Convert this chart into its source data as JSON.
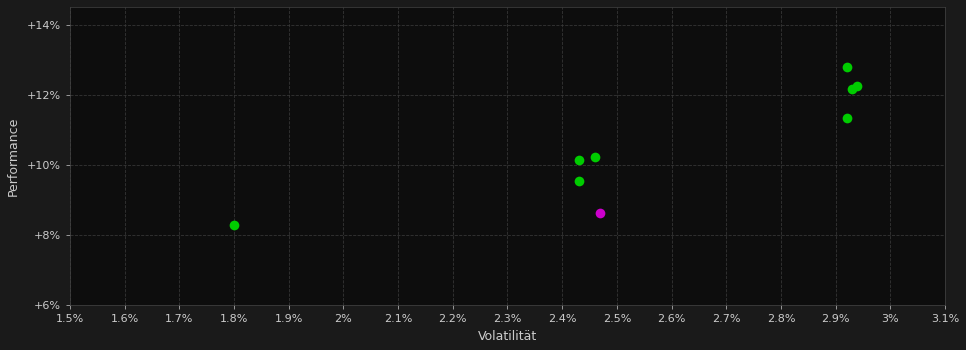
{
  "background_color": "#1a1a1a",
  "plot_bg_color": "#0d0d0d",
  "grid_color": "#3a3a3a",
  "grid_linestyle": "--",
  "xlabel": "Volatilität",
  "ylabel": "Performance",
  "xlabel_color": "#cccccc",
  "ylabel_color": "#cccccc",
  "tick_color": "#cccccc",
  "xlim": [
    0.015,
    0.031
  ],
  "ylim": [
    0.06,
    0.145
  ],
  "xticks": [
    0.015,
    0.016,
    0.017,
    0.018,
    0.019,
    0.02,
    0.021,
    0.022,
    0.023,
    0.024,
    0.025,
    0.026,
    0.027,
    0.028,
    0.029,
    0.03,
    0.031
  ],
  "yticks": [
    0.06,
    0.08,
    0.1,
    0.12,
    0.14
  ],
  "ytick_labels": [
    "+6%",
    "+8%",
    "+10%",
    "+12%",
    "+14%"
  ],
  "green_points": [
    [
      0.018,
      0.083
    ],
    [
      0.0243,
      0.1013
    ],
    [
      0.0246,
      0.1023
    ],
    [
      0.0243,
      0.0953
    ],
    [
      0.0292,
      0.1135
    ],
    [
      0.0293,
      0.1215
    ],
    [
      0.0294,
      0.1225
    ],
    [
      0.0292,
      0.128
    ]
  ],
  "magenta_points": [
    [
      0.0247,
      0.0863
    ]
  ],
  "green_color": "#00cc00",
  "magenta_color": "#cc00cc",
  "marker_size": 7
}
